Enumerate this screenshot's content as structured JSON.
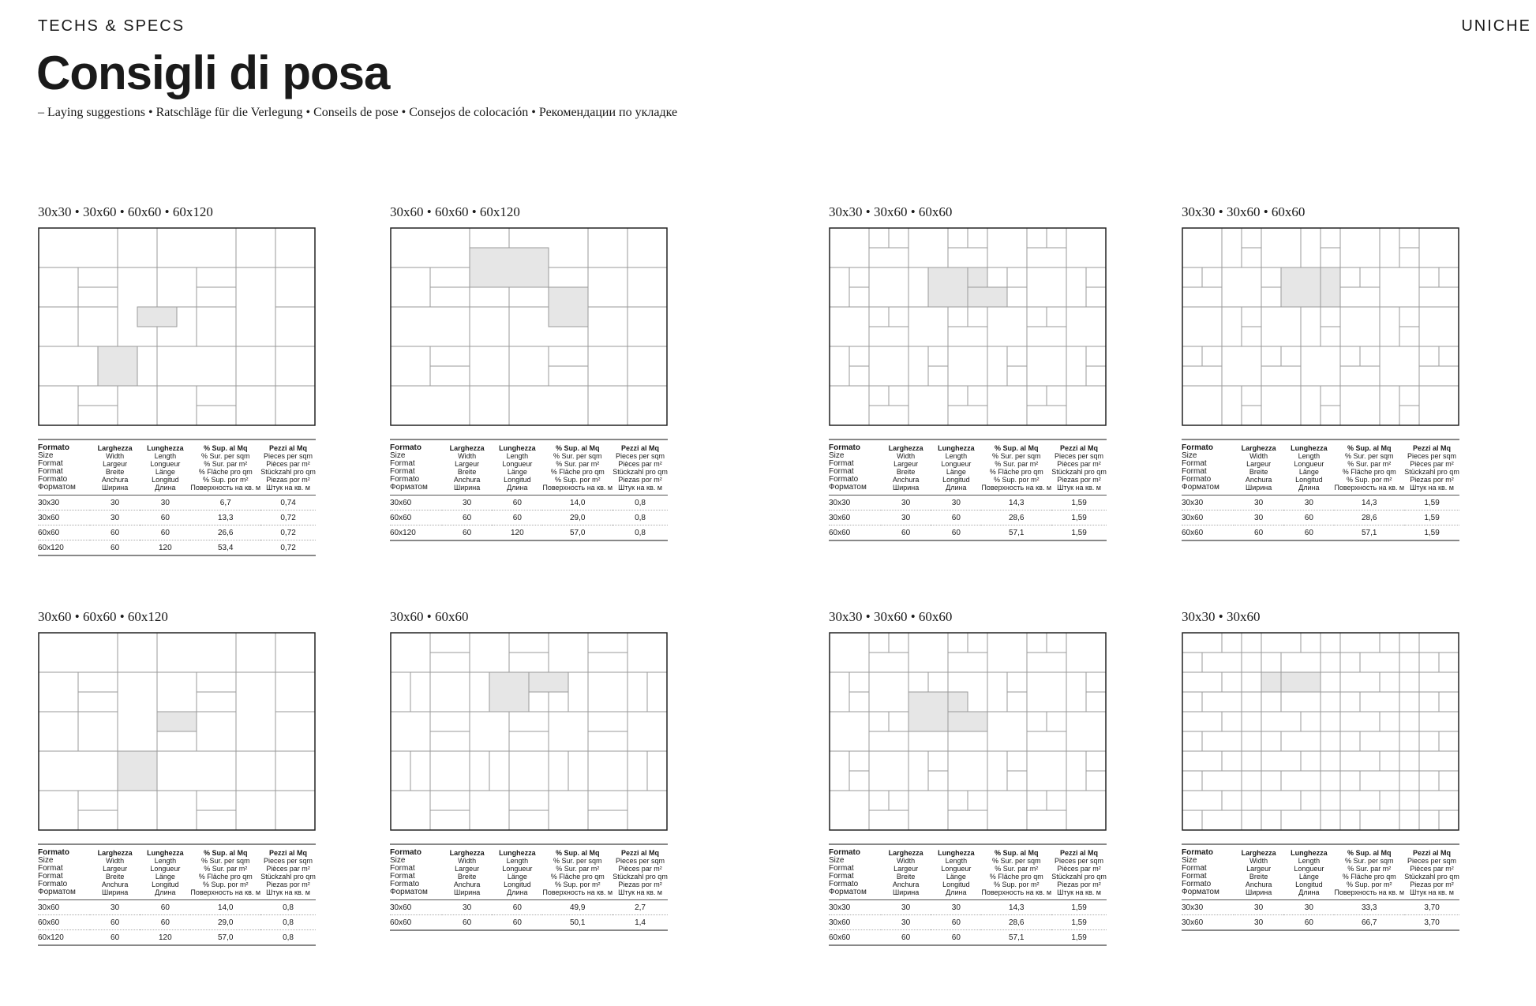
{
  "header": {
    "eyebrow": "TECHS & SPECS",
    "brand": "UNICHE",
    "title": "Consigli di posa",
    "subtitle": "– Laying suggestions • Ratschläge für die Verlegung • Conseils de pose • Consejos de colocación • Рекомендации по укладке"
  },
  "table_headers": [
    {
      "lines": [
        "Formato",
        "Size",
        "Format",
        "Format",
        "Formato",
        "Форматом"
      ]
    },
    {
      "lines": [
        "Larghezza",
        "Width",
        "Largeur",
        "Breite",
        "Anchura",
        "Ширина"
      ]
    },
    {
      "lines": [
        "Lunghezza",
        "Length",
        "Longueur",
        "Länge",
        "Longitud",
        "Длина"
      ]
    },
    {
      "lines": [
        "% Sup. al Mq",
        "% Sur. per sqm",
        "% Sur. par m²",
        "% Fläche pro qm",
        "% Sup. por m²",
        "Поверхность на кв. м"
      ]
    },
    {
      "lines": [
        "Pezzi al Mq",
        "Pieces per sqm",
        "Pièces par m²",
        "Stückzahl pro qm",
        "Piezas por m²",
        "Штук на кв. м"
      ]
    }
  ],
  "colors": {
    "frame": "#222222",
    "grid": "#9a9a9a",
    "highlight": "#e6e6e6"
  },
  "cards": [
    {
      "title": "30x30 • 30x60 • 60x60 • 60x120",
      "rows": [
        [
          "30x30",
          "30",
          "30",
          "6,7",
          "0,74"
        ],
        [
          "30x60",
          "30",
          "60",
          "13,3",
          "0,72"
        ],
        [
          "60x60",
          "60",
          "60",
          "26,6",
          "0,72"
        ],
        [
          "60x120",
          "60",
          "120",
          "53,4",
          "0,72"
        ]
      ]
    },
    {
      "title": "30x60 • 60x60 • 60x120",
      "rows": [
        [
          "30x60",
          "30",
          "60",
          "14,0",
          "0,8"
        ],
        [
          "60x60",
          "60",
          "60",
          "29,0",
          "0,8"
        ],
        [
          "60x120",
          "60",
          "120",
          "57,0",
          "0,8"
        ]
      ]
    },
    {
      "title": "30x30 • 30x60 • 60x60",
      "rows": [
        [
          "30x30",
          "30",
          "30",
          "14,3",
          "1,59"
        ],
        [
          "30x60",
          "30",
          "60",
          "28,6",
          "1,59"
        ],
        [
          "60x60",
          "60",
          "60",
          "57,1",
          "1,59"
        ]
      ]
    },
    {
      "title": "30x30 • 30x60 • 60x60",
      "rows": [
        [
          "30x30",
          "30",
          "30",
          "14,3",
          "1,59"
        ],
        [
          "30x60",
          "30",
          "60",
          "28,6",
          "1,59"
        ],
        [
          "60x60",
          "60",
          "60",
          "57,1",
          "1,59"
        ]
      ]
    },
    {
      "title": "30x60 • 60x60 • 60x120",
      "rows": [
        [
          "30x60",
          "30",
          "60",
          "14,0",
          "0,8"
        ],
        [
          "60x60",
          "60",
          "60",
          "29,0",
          "0,8"
        ],
        [
          "60x120",
          "60",
          "120",
          "57,0",
          "0,8"
        ]
      ]
    },
    {
      "title": "30x60 • 60x60",
      "rows": [
        [
          "30x60",
          "30",
          "60",
          "49,9",
          "2,7"
        ],
        [
          "60x60",
          "60",
          "60",
          "50,1",
          "1,4"
        ]
      ]
    },
    {
      "title": "30x30 • 30x60 • 60x60",
      "rows": [
        [
          "30x30",
          "30",
          "30",
          "14,3",
          "1,59"
        ],
        [
          "30x60",
          "30",
          "60",
          "28,6",
          "1,59"
        ],
        [
          "60x60",
          "60",
          "60",
          "57,1",
          "1,59"
        ]
      ]
    },
    {
      "title": "30x30 • 30x60",
      "rows": [
        [
          "30x30",
          "30",
          "30",
          "33,3",
          "3,70"
        ],
        [
          "30x60",
          "30",
          "60",
          "66,7",
          "3,70"
        ]
      ]
    }
  ]
}
